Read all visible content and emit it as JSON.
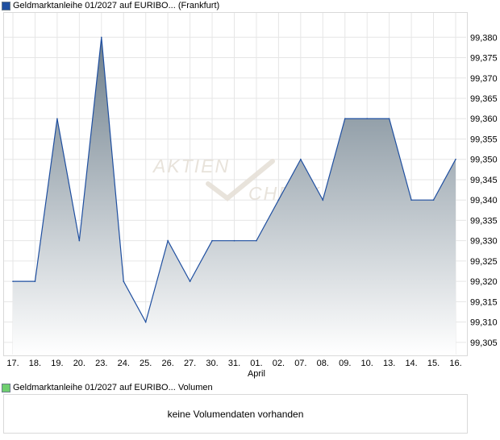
{
  "legend": {
    "price_label": "Geldmarktanleihe 01/2027 auf EURIBO... (Frankfurt)",
    "price_color": "#1f4fa0",
    "volume_label": "Geldmarktanleihe 01/2027 auf EURIBO... Volumen",
    "volume_color": "#6fcf6f"
  },
  "watermark": {
    "line1": "AKTIEN",
    "line2": "CHECK"
  },
  "volume_panel": {
    "message": "keine Volumendaten vorhanden"
  },
  "chart_data": {
    "type": "area",
    "categories": [
      "17.",
      "18.",
      "19.",
      "20.",
      "23.",
      "24.",
      "25.",
      "26.",
      "27.",
      "30.",
      "31.",
      "01.",
      "02.",
      "07.",
      "08.",
      "09.",
      "10.",
      "13.",
      "14.",
      "15.",
      "16."
    ],
    "month_label": {
      "at": "01.",
      "text": "April"
    },
    "series": [
      {
        "values": [
          99.32,
          99.32,
          99.36,
          99.33,
          99.38,
          99.32,
          99.31,
          99.33,
          99.32,
          99.33,
          99.33,
          99.33,
          99.34,
          99.35,
          99.34,
          99.36,
          99.36,
          99.36,
          99.34,
          99.34,
          99.35
        ]
      }
    ],
    "y_ticks": [
      "99,305",
      "99,310",
      "99,315",
      "99,320",
      "99,325",
      "99,330",
      "99,335",
      "99,340",
      "99,345",
      "99,350",
      "99,355",
      "99,360",
      "99,365",
      "99,370",
      "99,375",
      "99,380"
    ],
    "ylim": [
      99.302,
      99.386
    ],
    "grid": true,
    "line_color": "#1f4fa0",
    "fill_top_color": "#6e7f8c",
    "fill_bottom_color": "#ffffff"
  }
}
